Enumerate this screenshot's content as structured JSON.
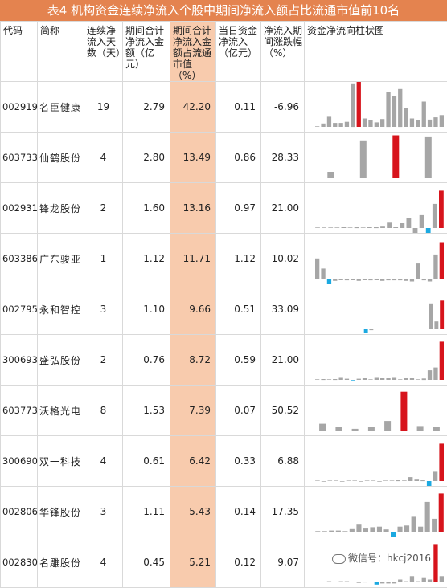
{
  "title": "表4  机构资金连续净流入个股中期间净流入额占比流通市值前10名",
  "headers": [
    "代码",
    "简称",
    "连续净流入天数（天）",
    "期间合计净流入金额（亿元）",
    "期间合计净流入金额占流通市值（%）",
    "当日资金净流入（亿元）",
    "净流入期间涨跌幅（%）",
    "资金净流向柱状图"
  ],
  "rows": [
    {
      "code": "002919",
      "name": "名臣健康",
      "days": "19",
      "total": "2.79",
      "pct": "42.20",
      "today": "0.11",
      "change": "-6.96",
      "bars": [
        0.2,
        1.2,
        3.6,
        1.4,
        1.4,
        1.8,
        15.5,
        17,
        3,
        2.4,
        1.6,
        2.8,
        12.5,
        11,
        13.5,
        6.8,
        3,
        2.4,
        9,
        2.6,
        3.4,
        4.2
      ]
    },
    {
      "code": "603733",
      "name": "仙鹤股份",
      "days": "4",
      "total": "2.80",
      "pct": "13.49",
      "today": "0.86",
      "change": "28.33",
      "bars": [
        2,
        13.2,
        15,
        14.6
      ]
    },
    {
      "code": "002931",
      "name": "锋龙股份",
      "days": "2",
      "total": "1.60",
      "pct": "13.16",
      "today": "0.97",
      "change": "21.00",
      "bars": [
        0.2,
        0.2,
        0.2,
        0.2,
        0.4,
        0.2,
        0.3,
        0.2,
        0.4,
        0.3,
        0.8,
        2.2,
        0.4,
        2,
        3.6,
        -2.4,
        4.6,
        -3.6,
        8.6,
        13.3
      ]
    },
    {
      "code": "603386",
      "name": "广东骏亚",
      "days": "1",
      "total": "1.12",
      "pct": "11.71",
      "today": "1.12",
      "change": "10.02",
      "bars": [
        7.2,
        3.6,
        -2.8,
        -0.8,
        -0.4,
        -0.6,
        -0.4,
        -0.8,
        -0.4,
        -0.6,
        -0.4,
        -0.8,
        -0.6,
        -0.6,
        -0.6,
        -0.8,
        -1,
        5.4,
        -0.6,
        -1,
        8.6,
        13
      ]
    },
    {
      "code": "002795",
      "name": "永和智控",
      "days": "3",
      "total": "1.10",
      "pct": "9.66",
      "today": "0.51",
      "change": "33.09",
      "bars": [
        0.1,
        0.1,
        0.1,
        0,
        0,
        0,
        0,
        0,
        0,
        -1.4,
        -0.3,
        0,
        0,
        0,
        0,
        0,
        0,
        0,
        0,
        0,
        0,
        9.2,
        2.8,
        10.2
      ]
    },
    {
      "code": "300693",
      "name": "盛弘股份",
      "days": "2",
      "total": "0.76",
      "pct": "8.72",
      "today": "0.59",
      "change": "21.00",
      "bars": [
        0.2,
        0.3,
        0.2,
        0.3,
        1,
        0.4,
        -0.2,
        0.4,
        0.6,
        0.2,
        1,
        0.6,
        0.6,
        1,
        0.2,
        0.8,
        0.8,
        0.2,
        0.5,
        3.4,
        4.4,
        13.6
      ]
    },
    {
      "code": "603773",
      "name": "沃格光电",
      "days": "8",
      "total": "1.53",
      "pct": "7.39",
      "today": "0.07",
      "change": "50.52",
      "bars": [
        2.4,
        1.4,
        0.6,
        1.2,
        3.4,
        13.8,
        1.6,
        1.4
      ]
    },
    {
      "code": "300690",
      "name": "双一科技",
      "days": "4",
      "total": "0.61",
      "pct": "6.42",
      "today": "0.33",
      "change": "6.88",
      "bars": [
        0,
        -0.2,
        0,
        0,
        -0.2,
        0,
        0,
        -0.2,
        0,
        0,
        -0.2,
        0,
        0,
        0.5,
        0.2,
        1.4,
        0.8,
        0.5,
        -2.2,
        3.6,
        13.3
      ]
    },
    {
      "code": "002806",
      "name": "华锋股份",
      "days": "3",
      "total": "1.11",
      "pct": "5.43",
      "today": "0.14",
      "change": "17.35",
      "bars": [
        0.2,
        0.2,
        0.4,
        0.4,
        0.2,
        1.2,
        2.8,
        1.4,
        1.6,
        1.8,
        0.8,
        -2.8,
        1.8,
        2.2,
        5.6,
        1.8,
        10.6,
        4.6,
        13.6
      ]
    },
    {
      "code": "002830",
      "name": "名雕股份",
      "days": "4",
      "total": "0.45",
      "pct": "5.21",
      "today": "0.12",
      "change": "9.07",
      "bars": [
        0.2,
        0.2,
        0.4,
        0.2,
        0.4,
        0.4,
        0.2,
        -0.2,
        0.3,
        0.2,
        -0.8,
        -0.4,
        -0.4,
        -0.4,
        1,
        0.4,
        2.2,
        0.4,
        1.8,
        1,
        13.6,
        2.2
      ]
    }
  ],
  "watermark": "微信号：hkcj2016",
  "colors": {
    "header": "#e4834f",
    "highlight": "#f8cbad",
    "bar_gray": "#a6a6a6",
    "bar_red": "#d7141c",
    "bar_blue": "#1ba9e1"
  }
}
